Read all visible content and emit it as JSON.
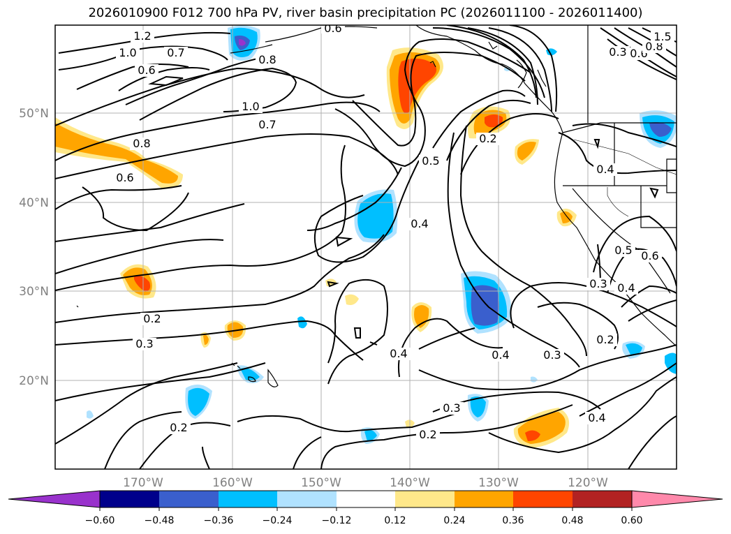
{
  "title": "2026010900 F012 700 hPa PV, river basin precipitation PC (2026011100 - 2026011400)",
  "lat_labels": [
    "50°N",
    "40°N",
    "30°N",
    "20°N"
  ],
  "lon_labels": [
    "170°W",
    "160°W",
    "150°W",
    "140°W",
    "130°W",
    "120°W"
  ],
  "contour_labels": [
    "1.2",
    "1.0",
    "0.7",
    "0.6",
    "0.8",
    "1.0",
    "0.7",
    "0.8",
    "0.6",
    "0.5",
    "0.4",
    "0.2",
    "0.4",
    "0.2",
    "0.3",
    "0.4",
    "0.4",
    "0.3",
    "0.2",
    "0.3",
    "0.2",
    "0.4",
    "0.2",
    "0.5",
    "0.6",
    "0.3",
    "0.4",
    "0.6",
    "0.3",
    "0.8",
    "1.5",
    "0.6"
  ],
  "colorbar": {
    "ticks": [
      "−0.60",
      "−0.48",
      "−0.36",
      "−0.24",
      "−0.12",
      "0.12",
      "0.24",
      "0.36",
      "0.48",
      "0.60"
    ],
    "colors": [
      "#9932cc",
      "#00008b",
      "#3a5fcd",
      "#00bfff",
      "#b0e2ff",
      "#ffffff",
      "#ffe88a",
      "#ffa500",
      "#ff4500",
      "#b22222",
      "#ff89ab"
    ]
  },
  "fill_colors": {
    "neg1": "#b0e2ff",
    "neg2": "#00bfff",
    "neg3": "#3a5fcd",
    "neg5": "#9932cc",
    "pos1": "#ffe88a",
    "pos2": "#ffa500",
    "pos3": "#ff4500"
  }
}
